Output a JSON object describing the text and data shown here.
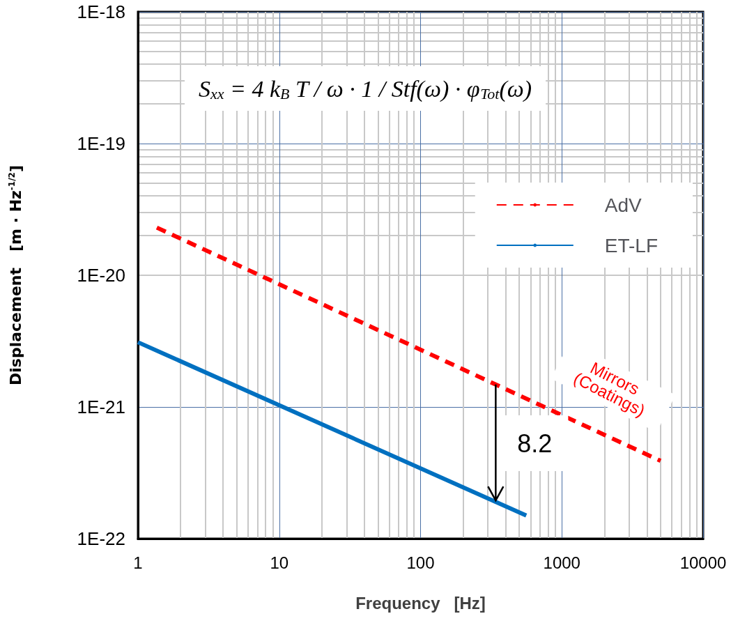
{
  "chart_data": {
    "type": "line",
    "xlabel": "Frequency   [Hz]",
    "ylabel": "Displacement   [m · Hz$^{-1/2}$]",
    "series": [
      {
        "name": "AdV",
        "color": "#ff0000",
        "line_style": "dashed",
        "x": [
          1.36,
          5000
        ],
        "values": [
          2.3e-20,
          3.9e-22
        ]
      },
      {
        "name": "ET-LF",
        "color": "#0070c0",
        "line_style": "solid",
        "x": [
          1,
          560
        ],
        "values": [
          3.1e-21,
          1.5e-22
        ]
      }
    ],
    "log": "xy",
    "xlim": [
      1,
      10000
    ],
    "xticks": [
      1,
      10,
      100,
      1000,
      10000
    ],
    "ylim": [
      1e-22,
      1e-18
    ],
    "yticks": [
      {
        "value": 1e-22,
        "label": "1E-22"
      },
      {
        "value": 1e-21,
        "label": "1E-21"
      },
      {
        "value": 1e-20,
        "label": "1E-20"
      },
      {
        "value": 1e-19,
        "label": "1E-19"
      },
      {
        "value": 1e-18,
        "label": "1E-18"
      }
    ],
    "grid": true,
    "legend": "top right",
    "marker": "none",
    "annotations": [
      "S$_{xx}$ = 4 k$_{B}$ T / ω · 1 / Stf(ω) · φ$_{Tot}$(ω)",
      "Mirrors (Coatings)",
      "8.2"
    ]
  }
}
